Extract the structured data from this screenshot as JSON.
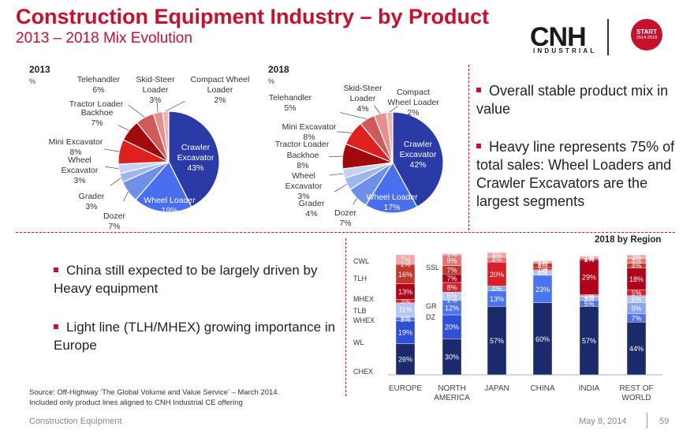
{
  "header": {
    "title": "Construction Equipment Industry – by Product",
    "subtitle": "2013 – 2018 Mix Evolution",
    "logo_text": "CNH",
    "logo_subtext": "INDUSTRIAL",
    "badge_line1": "START",
    "badge_line2": "2014-2018"
  },
  "colors": {
    "brand_red": "#c8102e",
    "crawler": "#2a3aa6",
    "wheel_loader": "#4a6ef0",
    "dozer": "#6f8fe8",
    "grader": "#9fb6f0",
    "wheel_excavator": "#c4d3f5",
    "mini_excavator": "#e01f1f",
    "backhoe": "#a00a0a",
    "tractor_loader": "#8e0000",
    "telehandler": "#d05a5a",
    "skid_steer": "#e58f8f",
    "compact_wheel_loader": "#f0b4b4"
  },
  "chart_data": [
    {
      "type": "pie",
      "title": "2013",
      "unit": "%",
      "slices": [
        {
          "key": "crawler",
          "label": "Crawler Excavator",
          "value": 43
        },
        {
          "key": "wheel_loader",
          "label": "Wheel Loader",
          "value": 19
        },
        {
          "key": "dozer",
          "label": "Dozer",
          "value": 7
        },
        {
          "key": "grader",
          "label": "Grader",
          "value": 3
        },
        {
          "key": "wheel_excavator",
          "label": "Wheel Excavator",
          "value": 3
        },
        {
          "key": "mini_excavator",
          "label": "Mini Excavator",
          "value": 8
        },
        {
          "key": "backhoe",
          "label": "Backhoe",
          "value": 7
        },
        {
          "key": "tractor_loader",
          "label": "Tractor Loader",
          "value": 0
        },
        {
          "key": "telehandler",
          "label": "Telehandler",
          "value": 6
        },
        {
          "key": "skid_steer",
          "label": "Skid-Steer Loader",
          "value": 3
        },
        {
          "key": "compact_wheel_loader",
          "label": "Compact Wheel Loader",
          "value": 2
        }
      ],
      "labels": {
        "crawler": [
          "Crawler",
          "Excavator",
          "43%"
        ],
        "wheel_loader": [
          "Wheel Loader",
          "19%"
        ],
        "dozer": [
          "Dozer",
          "7%"
        ],
        "grader": [
          "Grader",
          "3%"
        ],
        "wheel_excavator": [
          "Wheel",
          "Excavator",
          "3%"
        ],
        "mini_excavator": [
          "Mini Excavator",
          "8%"
        ],
        "backhoe": [
          "Backhoe",
          "7%"
        ],
        "tractor_loader": [
          "Tractor Loader"
        ],
        "telehandler": [
          "Telehandler",
          "6%"
        ],
        "skid_steer": [
          "Skid-Steer",
          "Loader",
          "3%"
        ],
        "compact_wheel_loader": [
          "Compact Wheel",
          "Loader",
          "2%"
        ]
      }
    },
    {
      "type": "pie",
      "title": "2018",
      "unit": "%",
      "slices": [
        {
          "key": "crawler",
          "label": "Crawler Excavator",
          "value": 42
        },
        {
          "key": "wheel_loader",
          "label": "Wheel Loader",
          "value": 17
        },
        {
          "key": "dozer",
          "label": "Dozer",
          "value": 7
        },
        {
          "key": "grader",
          "label": "Grader",
          "value": 4
        },
        {
          "key": "wheel_excavator",
          "label": "Wheel Excavator",
          "value": 3
        },
        {
          "key": "backhoe",
          "label": "Backhoe",
          "value": 8
        },
        {
          "key": "mini_excavator",
          "label": "Mini Excavator",
          "value": 8
        },
        {
          "key": "tractor_loader",
          "label": "Tractor Loader",
          "value": 0
        },
        {
          "key": "telehandler",
          "label": "Telehandler",
          "value": 5
        },
        {
          "key": "skid_steer",
          "label": "Skid-Steer Loader",
          "value": 4
        },
        {
          "key": "compact_wheel_loader",
          "label": "Compact Wheel Loader",
          "value": 2
        }
      ],
      "labels": {
        "crawler": [
          "Crawler",
          "Excavator",
          "42%"
        ],
        "wheel_loader": [
          "Wheel Loader",
          "17%"
        ],
        "dozer": [
          "Dozer",
          "7%"
        ],
        "grader": [
          "Grader",
          "4%"
        ],
        "wheel_excavator": [
          "Wheel",
          "Excavator",
          "3%"
        ],
        "backhoe": [
          "Backhoe",
          "8%"
        ],
        "mini_excavator": [
          "Mini Excavator",
          "8%"
        ],
        "tractor_loader": [
          "Tractor Loader"
        ],
        "telehandler": [
          "Telehandler",
          "5%"
        ],
        "skid_steer": [
          "Skid-Steer",
          "Loader",
          "4%"
        ],
        "compact_wheel_loader": [
          "Compact",
          "Wheel Loader",
          "2%"
        ]
      }
    },
    {
      "type": "bar",
      "stacked": true,
      "title": "2018 by Region",
      "categories": [
        "EUROPE",
        "NORTH AMERICA",
        "JAPAN",
        "CHINA",
        "INDIA",
        "REST OF WORLD"
      ],
      "category_lines": [
        [
          "EUROPE"
        ],
        [
          "NORTH",
          "AMERICA"
        ],
        [
          "JAPAN"
        ],
        [
          "CHINA"
        ],
        [
          "INDIA"
        ],
        [
          "REST OF",
          "WORLD"
        ]
      ],
      "ylim": [
        0,
        100
      ],
      "series": [
        {
          "name": "CHEX",
          "color": "#1b2a6b",
          "values": [
            26,
            30,
            57,
            60,
            57,
            44
          ]
        },
        {
          "name": "WL",
          "color": "#2e4fd6",
          "values": [
            19,
            20,
            0,
            0,
            0,
            0
          ]
        },
        {
          "name": "DZ",
          "color": "#4d74f0",
          "values": [
            3,
            12,
            13,
            23,
            5,
            7
          ]
        },
        {
          "name": "GR",
          "color": "#8aa4ef",
          "values": [
            1,
            1,
            4,
            0,
            3,
            9
          ]
        },
        {
          "name": "WHEX",
          "color": "#b5c6f3",
          "values": [
            11,
            6,
            0,
            4,
            1,
            6
          ]
        },
        {
          "name": "TLB",
          "color": "#d81f2a",
          "values": [
            3,
            8,
            20,
            1,
            1,
            5
          ]
        },
        {
          "name": "MHEX",
          "color": "#b0001a",
          "values": [
            13,
            7,
            0,
            1,
            29,
            18
          ]
        },
        {
          "name": "TLH",
          "color": "#c0392b",
          "values": [
            16,
            7,
            0,
            4,
            1,
            4
          ]
        },
        {
          "name": "SSL",
          "color": "#e57373",
          "values": [
            1,
            9,
            4,
            1,
            1,
            4
          ]
        },
        {
          "name": "CWL",
          "color": "#f2a6a6",
          "values": [
            7,
            1,
            4,
            1,
            1,
            3
          ]
        }
      ],
      "left_legend": [
        "CWL",
        "TLH",
        "MHEX",
        "TLB",
        "WHEX",
        "WL",
        "CHEX"
      ],
      "inner_legend": [
        "SSL",
        "GR",
        "DZ"
      ],
      "segment_labels": [
        [
          "26%",
          "19%",
          "3%",
          "1%",
          "11%",
          "3%",
          "13%",
          "16%",
          "1%",
          "7%"
        ],
        [
          "30%",
          "20%",
          "12%",
          "1%",
          "6%",
          "8%",
          "7%",
          "7%",
          "9%",
          "1%"
        ],
        [
          "57%",
          "",
          "13%",
          "4%",
          "",
          "20%",
          "",
          "",
          "4%",
          "4%"
        ],
        [
          "60%",
          "",
          "23%",
          "",
          "4%",
          "1%",
          "1%",
          "4%",
          "1%",
          "1%"
        ],
        [
          "57%",
          "",
          "5%",
          "3%",
          "1%",
          "1%",
          "29%",
          "1%",
          "1%",
          "1%"
        ],
        [
          "44%",
          "",
          "7%",
          "9%",
          "6%",
          "5%",
          "18%",
          "4%",
          "4%",
          "3%"
        ]
      ]
    }
  ],
  "pies": {
    "pie2013": {
      "year": "2013",
      "unit": "%"
    },
    "pie2018": {
      "year": "2018",
      "unit": "%"
    }
  },
  "right_bullets": [
    "Overall stable product mix in value",
    "Heavy line represents 75% of total sales: Wheel Loaders and Crawler Excavators are the largest segments"
  ],
  "left_bullets": [
    "China still expected to be largely driven by Heavy equipment",
    "Light line (TLH/MHEX) growing importance in Europe"
  ],
  "region_title": "2018 by Region",
  "source": {
    "line1": "Source: Off-Highway ‘The Global Volume and Value Service’ – March 2014.",
    "line2": "Included only product lines aligned to CNH Industrial CE offering"
  },
  "footer": {
    "left": "Construction Equipment",
    "date": "May 8, 2014",
    "page": "59"
  }
}
